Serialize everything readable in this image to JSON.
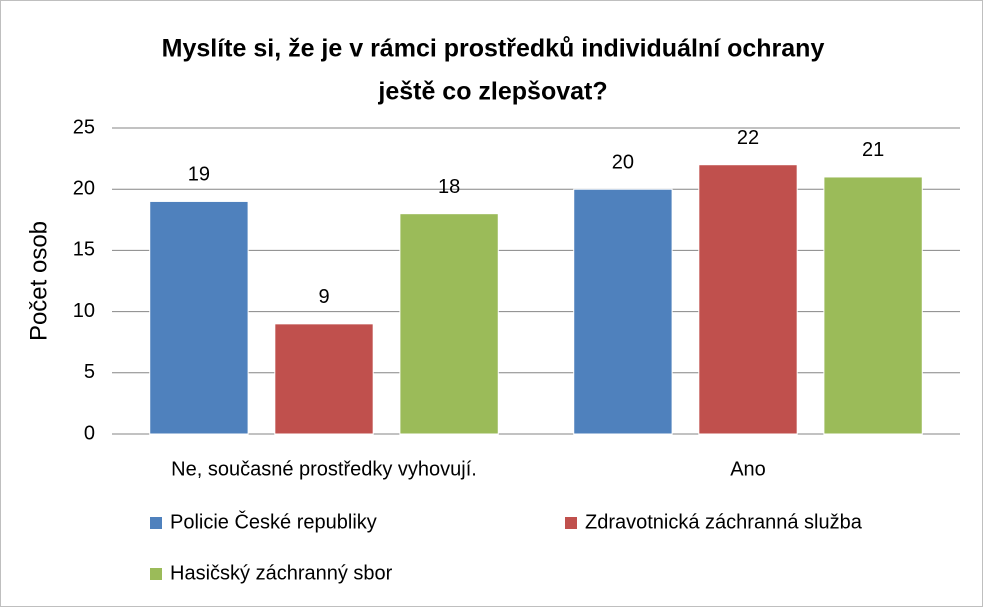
{
  "chart_data": {
    "type": "bar",
    "title": [
      "Myslíte si, že je v rámci prostředků individuální ochrany",
      "ještě co zlepšovat?"
    ],
    "ylabel": "Počet osob",
    "categories": [
      "Ne, současné prostředky vyhovují.",
      "Ano"
    ],
    "series": [
      {
        "name": "Policie České republiky",
        "color": "#4f81bd",
        "values": [
          19,
          20
        ]
      },
      {
        "name": "Zdravotnická záchranná služba",
        "color": "#c0504d",
        "values": [
          9,
          22
        ]
      },
      {
        "name": "Hasičský záchranný sbor",
        "color": "#9bbb59",
        "values": [
          18,
          21
        ]
      }
    ],
    "ylim": [
      0,
      25
    ],
    "yticks": [
      0,
      5,
      10,
      15,
      20,
      25
    ],
    "grid": true,
    "legend": "bottom"
  }
}
